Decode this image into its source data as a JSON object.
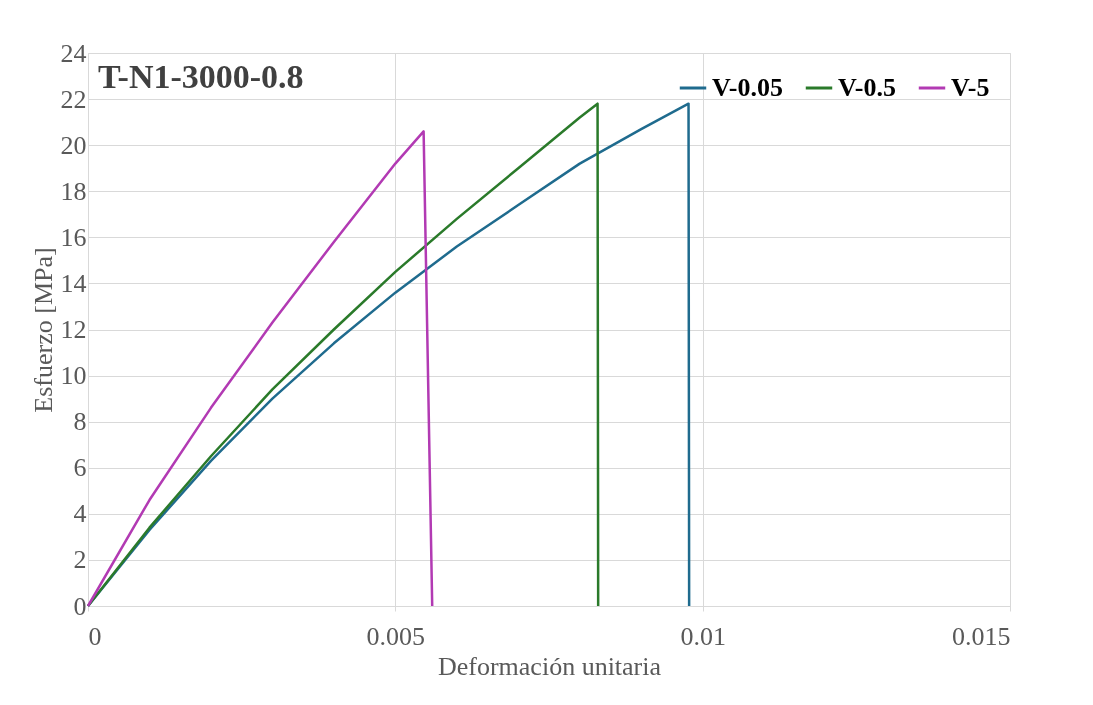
{
  "chart_data": {
    "type": "line",
    "xlabel": "Deformación unitaria",
    "ylabel": "Esfuerzo [MPa]",
    "annotations": [
      "T-N1-3000-0.8"
    ],
    "xlim": [
      0,
      0.015
    ],
    "xticks": [
      0,
      0.005,
      0.01,
      0.015
    ],
    "ylim": [
      0,
      24
    ],
    "yticks": [
      0,
      2,
      4,
      6,
      8,
      10,
      12,
      14,
      16,
      18,
      20,
      22,
      24
    ],
    "grid": true,
    "legend": "top right",
    "line_style": "solid",
    "marker": "none",
    "series": [
      {
        "name": "V-0.05",
        "color": "#1f6b8e",
        "x": [
          0,
          0.001,
          0.002,
          0.003,
          0.004,
          0.005,
          0.006,
          0.007,
          0.008,
          0.009,
          0.00977,
          0.00978
        ],
        "values": [
          0,
          3.3,
          6.3,
          9.0,
          11.4,
          13.6,
          15.6,
          17.4,
          19.2,
          20.7,
          21.8,
          0
        ]
      },
      {
        "name": "V-0.5",
        "color": "#2a7a2a",
        "x": [
          0,
          0.001,
          0.002,
          0.003,
          0.004,
          0.005,
          0.006,
          0.007,
          0.008,
          0.00829,
          0.0083
        ],
        "values": [
          0,
          3.4,
          6.5,
          9.4,
          12.0,
          14.5,
          16.8,
          19.0,
          21.2,
          21.8,
          0
        ]
      },
      {
        "name": "V-5",
        "color": "#b23ab3",
        "x": [
          0,
          0.001,
          0.002,
          0.003,
          0.004,
          0.005,
          0.00546,
          0.0056
        ],
        "values": [
          0,
          4.6,
          8.6,
          12.3,
          15.8,
          19.2,
          20.6,
          0
        ]
      }
    ]
  }
}
